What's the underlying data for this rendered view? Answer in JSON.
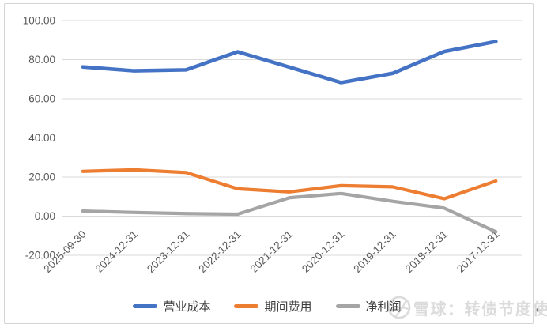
{
  "chart_data": {
    "type": "line",
    "title": "",
    "xlabel": "",
    "ylabel": "",
    "categories": [
      "2025-09-30",
      "2024-12-31",
      "2023-12-31",
      "2022-12-31",
      "2021-12-31",
      "2020-12-31",
      "2019-12-31",
      "2018-12-31",
      "2017-12-31"
    ],
    "series": [
      {
        "name": "营业成本",
        "color": "#4472C4",
        "values": [
          76.3,
          74.3,
          74.8,
          84.0,
          76.2,
          68.3,
          73.0,
          84.2,
          89.3
        ]
      },
      {
        "name": "期间费用",
        "color": "#ED7D31",
        "values": [
          22.9,
          23.7,
          22.3,
          14.0,
          12.4,
          15.6,
          15.0,
          8.9,
          18.0
        ]
      },
      {
        "name": "净利润",
        "color": "#A5A5A5",
        "values": [
          2.6,
          1.9,
          1.3,
          1.0,
          9.4,
          11.6,
          7.6,
          4.1,
          -8.0
        ]
      }
    ],
    "ylim": [
      -20,
      100
    ],
    "y_ticks": [
      100,
      80,
      60,
      40,
      20,
      0,
      -20
    ],
    "y_tick_labels": [
      "100.00",
      "80.00",
      "60.00",
      "40.00",
      "20.00",
      "0.00",
      "-20.00"
    ],
    "grid": true,
    "legend_position": "bottom",
    "x_label_rotation": -45
  },
  "colors": {
    "gridline": "#d9d9d9",
    "axis_text": "#595959",
    "legend_text": "#3f3f3f",
    "frame_border": "#d4d4d4",
    "watermark": "#dbdbdb"
  },
  "watermark": {
    "icon": "snowball-logo-icon",
    "text": "雪球：转债节度使"
  },
  "return_mark": "↵"
}
